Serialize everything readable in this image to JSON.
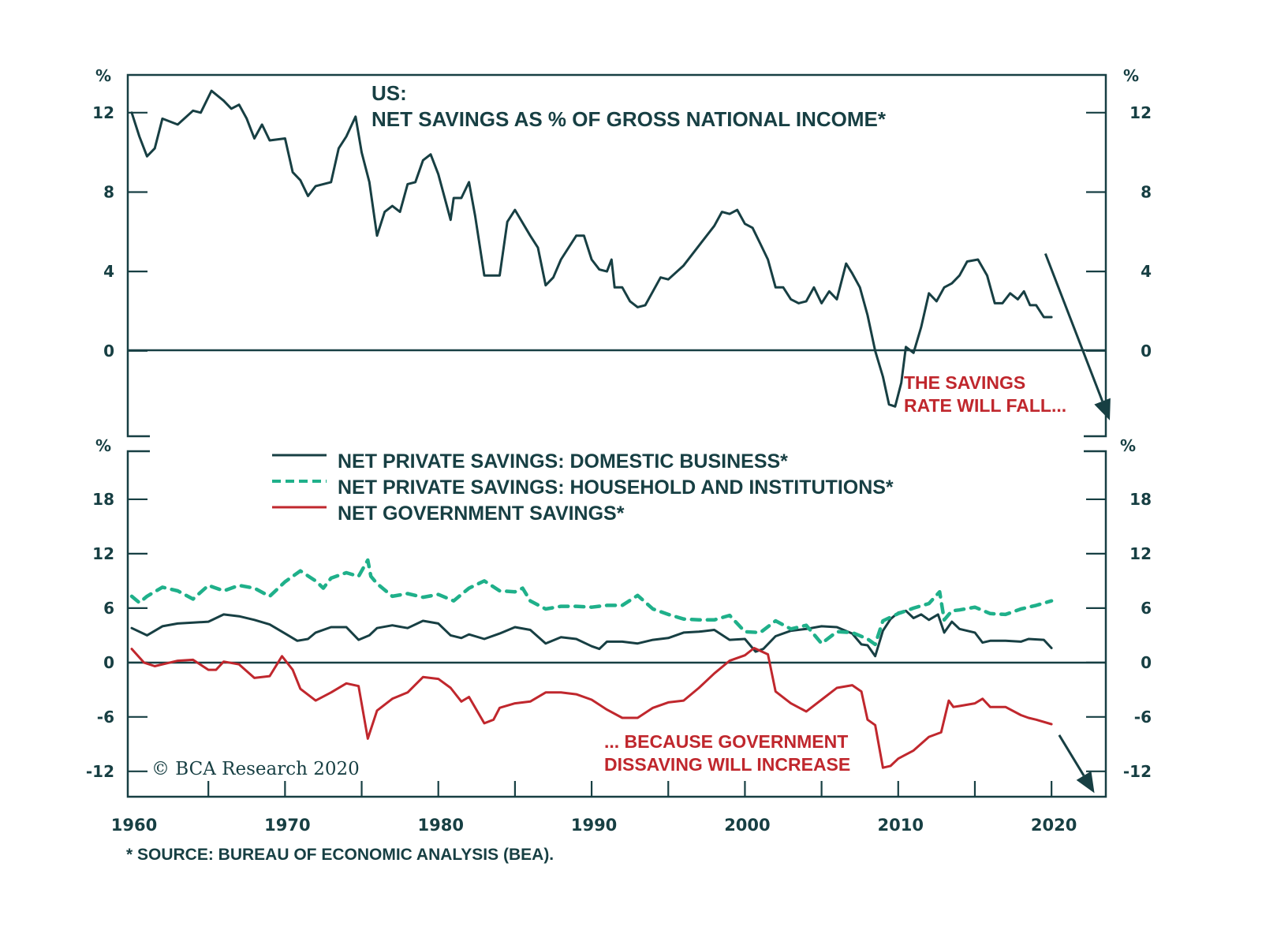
{
  "chart_data": [
    {
      "type": "line",
      "title_line1": "US:",
      "title_line2": "NET SAVINGS AS % OF GROSS NATIONAL INCOME*",
      "ylabel": "%",
      "ylim": [
        -4.3,
        13.9
      ],
      "yticks": [
        0,
        4,
        8,
        12
      ],
      "ytick_labels": [
        "0",
        "4",
        "8",
        "12"
      ],
      "grid": false,
      "zero_line": true,
      "annotation": {
        "line1": "THE SAVINGS",
        "line2": "RATE WILL FALL...",
        "color": "#c0272d"
      },
      "arrow": {
        "from": [
          2019.6,
          4.9
        ],
        "to": [
          2023.8,
          -3.5
        ]
      },
      "series": [
        {
          "name": "Net savings as % of GNI",
          "color": "#173f43",
          "style": "solid",
          "x": [
            1960,
            1960.5,
            1961,
            1961.5,
            1962,
            1963,
            1964,
            1964.5,
            1965.2,
            1966,
            1966.5,
            1967,
            1967.5,
            1968,
            1968.5,
            1969,
            1970,
            1970.5,
            1971,
            1971.5,
            1972,
            1973,
            1973.5,
            1974,
            1974.6,
            1975,
            1975.5,
            1976,
            1976.5,
            1977,
            1977.5,
            1978,
            1978.5,
            1979,
            1979.5,
            1980,
            1980.8,
            1981,
            1981.5,
            1982,
            1982.4,
            1983,
            1983.5,
            1984,
            1984.5,
            1985,
            1986,
            1986.5,
            1987,
            1987.5,
            1988,
            1989,
            1989.5,
            1990,
            1990.5,
            1991,
            1991.3,
            1991.5,
            1992,
            1992.5,
            1993,
            1993.5,
            1994,
            1994.5,
            1995,
            1996,
            1997,
            1998,
            1998.5,
            1999,
            1999.5,
            2000,
            2000.5,
            2001,
            2001.5,
            2002,
            2002.5,
            2003,
            2003.5,
            2004,
            2004.5,
            2005,
            2005.5,
            2006,
            2006.6,
            2007,
            2007.5,
            2008,
            2008.5,
            2009,
            2009.4,
            2009.8,
            2010.2,
            2010.5,
            2011,
            2011.5,
            2012,
            2012.5,
            2013,
            2013.5,
            2014,
            2014.5,
            2015.2,
            2015.8,
            2016.3,
            2016.8,
            2017.3,
            2017.8,
            2018.2,
            2018.6,
            2019,
            2019.5,
            2020
          ],
          "values": [
            12.0,
            10.8,
            9.8,
            10.2,
            11.7,
            11.4,
            12.1,
            12.0,
            13.1,
            12.6,
            12.2,
            12.4,
            11.7,
            10.7,
            11.4,
            10.6,
            10.7,
            9.0,
            8.6,
            7.8,
            8.3,
            8.5,
            10.2,
            10.8,
            11.8,
            10.0,
            8.5,
            5.8,
            7.0,
            7.3,
            7.0,
            8.4,
            8.5,
            9.6,
            9.9,
            8.9,
            6.6,
            7.7,
            7.7,
            8.5,
            6.8,
            3.8,
            3.8,
            3.8,
            6.5,
            7.1,
            5.8,
            5.2,
            3.3,
            3.7,
            4.6,
            5.8,
            5.8,
            4.6,
            4.1,
            4.0,
            4.6,
            3.2,
            3.2,
            2.5,
            2.2,
            2.3,
            3.0,
            3.7,
            3.6,
            4.3,
            5.3,
            6.3,
            7.0,
            6.9,
            7.1,
            6.4,
            6.2,
            5.4,
            4.6,
            3.2,
            3.2,
            2.6,
            2.4,
            2.5,
            3.2,
            2.4,
            3.0,
            2.6,
            4.4,
            3.9,
            3.2,
            1.8,
            0.0,
            -1.3,
            -2.7,
            -2.8,
            -1.6,
            0.2,
            -0.1,
            1.2,
            2.9,
            2.5,
            3.2,
            3.4,
            3.8,
            4.5,
            4.6,
            3.8,
            2.4,
            2.4,
            2.9,
            2.6,
            3.0,
            2.3,
            2.3,
            1.7,
            1.7
          ]
        }
      ]
    },
    {
      "type": "line",
      "ylabel": "%",
      "ylim": [
        -14.8,
        23.3
      ],
      "yticks": [
        -12,
        -6,
        0,
        6,
        12,
        18
      ],
      "ytick_labels": [
        "-12",
        "-6",
        "0",
        "6",
        "12",
        "18"
      ],
      "grid": false,
      "zero_line": true,
      "legend_position": "top-center",
      "annotation": {
        "line1": "... BECAUSE GOVERNMENT",
        "line2": "DISSAVING WILL INCREASE",
        "color": "#c0272d"
      },
      "arrow": {
        "from": [
          2020.5,
          -8.0
        ],
        "to": [
          2022.8,
          -14.4
        ]
      },
      "series": [
        {
          "name": "NET PRIVATE SAVINGS: DOMESTIC BUSINESS*",
          "color": "#173f43",
          "style": "solid",
          "x": [
            1960,
            1961,
            1962,
            1963,
            1964,
            1965,
            1966,
            1967,
            1968,
            1969,
            1970,
            1970.8,
            1971.5,
            1972,
            1973,
            1974,
            1974.8,
            1975.5,
            1976,
            1977,
            1978,
            1979,
            1980,
            1980.8,
            1981.5,
            1982,
            1983,
            1984,
            1985,
            1986,
            1987,
            1988,
            1989,
            1990,
            1990.5,
            1991,
            1992,
            1993,
            1994,
            1995,
            1996,
            1997,
            1998,
            1999,
            2000,
            2000.7,
            2001.2,
            2002,
            2003,
            2004,
            2005,
            2006,
            2007,
            2007.6,
            2008,
            2008.5,
            2009,
            2009.5,
            2010,
            2010.5,
            2011,
            2011.5,
            2012,
            2012.6,
            2013,
            2013.5,
            2014,
            2015,
            2015.5,
            2016,
            2017,
            2018,
            2018.5,
            2019.5,
            2020
          ],
          "values": [
            3.8,
            3.0,
            4.0,
            4.3,
            4.4,
            4.5,
            5.3,
            5.1,
            4.7,
            4.2,
            3.2,
            2.4,
            2.6,
            3.3,
            3.9,
            3.9,
            2.5,
            3.0,
            3.8,
            4.1,
            3.8,
            4.6,
            4.3,
            3.0,
            2.7,
            3.1,
            2.6,
            3.2,
            3.9,
            3.6,
            2.1,
            2.8,
            2.6,
            1.8,
            1.5,
            2.3,
            2.3,
            2.1,
            2.5,
            2.7,
            3.3,
            3.4,
            3.6,
            2.5,
            2.6,
            1.2,
            1.5,
            2.9,
            3.5,
            3.7,
            4.0,
            3.9,
            3.2,
            2.0,
            1.9,
            0.7,
            3.5,
            4.8,
            5.5,
            5.7,
            4.9,
            5.3,
            4.7,
            5.3,
            3.3,
            4.5,
            3.7,
            3.3,
            2.2,
            2.4,
            2.4,
            2.3,
            2.6,
            2.5,
            1.6
          ]
        },
        {
          "name": "NET PRIVATE SAVINGS: HOUSEHOLD AND INSTITUTIONS*",
          "color": "#1fb08a",
          "style": "dashed",
          "x": [
            1960,
            1960.5,
            1961,
            1962,
            1963,
            1964,
            1965,
            1966,
            1967,
            1968,
            1969,
            1970,
            1971,
            1972,
            1972.5,
            1973,
            1974,
            1974.8,
            1975.4,
            1975.6,
            1976,
            1977,
            1978,
            1979,
            1980,
            1981,
            1982,
            1983,
            1984,
            1985,
            1985.5,
            1986,
            1987,
            1988,
            1989,
            1990,
            1991,
            1992,
            1993,
            1994,
            1995,
            1996,
            1997,
            1998,
            1999,
            2000,
            2001,
            2002,
            2003,
            2004,
            2005,
            2006,
            2007,
            2008,
            2008.5,
            2009,
            2010,
            2011,
            2012,
            2012.7,
            2013,
            2013.5,
            2014,
            2015,
            2016,
            2017,
            2018,
            2019,
            2020
          ],
          "values": [
            7.3,
            6.6,
            7.3,
            8.3,
            7.9,
            7.0,
            8.5,
            7.9,
            8.5,
            8.2,
            7.3,
            8.9,
            10.1,
            9.0,
            8.2,
            9.3,
            9.9,
            9.5,
            11.3,
            9.5,
            8.7,
            7.3,
            7.6,
            7.2,
            7.5,
            6.8,
            8.2,
            9.0,
            7.9,
            7.8,
            8.2,
            6.8,
            5.9,
            6.2,
            6.2,
            6.1,
            6.3,
            6.3,
            7.4,
            5.9,
            5.3,
            4.8,
            4.7,
            4.7,
            5.2,
            3.4,
            3.3,
            4.6,
            3.7,
            4.1,
            2.1,
            3.4,
            3.3,
            2.6,
            2.0,
            4.6,
            5.4,
            6.0,
            6.5,
            7.8,
            4.7,
            5.7,
            5.8,
            6.1,
            5.4,
            5.3,
            5.9,
            6.3,
            6.8
          ]
        },
        {
          "name": "NET GOVERNMENT SAVINGS*",
          "color": "#c0272d",
          "style": "solid",
          "x": [
            1960,
            1960.8,
            1961.5,
            1962,
            1963,
            1964,
            1965,
            1965.5,
            1966,
            1967,
            1968,
            1969,
            1969.8,
            1970.5,
            1971,
            1972,
            1973,
            1974,
            1974.8,
            1975.4,
            1976,
            1977,
            1978,
            1979,
            1980,
            1980.8,
            1981.5,
            1982,
            1983,
            1983.6,
            1984,
            1985,
            1986,
            1987,
            1988,
            1989,
            1990,
            1991,
            1992,
            1993,
            1994,
            1995,
            1996,
            1997,
            1998,
            1999,
            2000,
            2000.6,
            2001.5,
            2002,
            2003,
            2004,
            2005,
            2006,
            2007,
            2007.6,
            2008,
            2008.5,
            2009,
            2009.5,
            2010,
            2011,
            2012,
            2012.8,
            2013.3,
            2013.6,
            2014,
            2015,
            2015.5,
            2016,
            2017,
            2018,
            2018.5,
            2019,
            2020
          ],
          "values": [
            1.5,
            0.0,
            -0.4,
            -0.2,
            0.2,
            0.3,
            -0.8,
            -0.8,
            0.1,
            -0.2,
            -1.7,
            -1.5,
            0.7,
            -0.8,
            -2.9,
            -4.2,
            -3.3,
            -2.3,
            -2.6,
            -8.4,
            -5.3,
            -4.0,
            -3.3,
            -1.6,
            -1.8,
            -2.8,
            -4.3,
            -3.8,
            -6.7,
            -6.3,
            -5.0,
            -4.5,
            -4.3,
            -3.3,
            -3.3,
            -3.5,
            -4.1,
            -5.2,
            -6.1,
            -6.1,
            -5.0,
            -4.4,
            -4.2,
            -2.8,
            -1.2,
            0.2,
            0.8,
            1.6,
            0.9,
            -3.2,
            -4.5,
            -5.4,
            -4.1,
            -2.8,
            -2.5,
            -3.2,
            -6.3,
            -6.9,
            -11.6,
            -11.4,
            -10.6,
            -9.7,
            -8.2,
            -7.7,
            -4.2,
            -4.9,
            -4.8,
            -4.5,
            -4.0,
            -4.9,
            -4.9,
            -5.8,
            -6.1,
            -6.3,
            -6.8
          ]
        }
      ]
    }
  ],
  "xaxis": {
    "xlim": [
      1960,
      2023.8
    ],
    "major_ticks": [
      1960,
      1970,
      1980,
      1990,
      2000,
      2010,
      2020
    ],
    "tick_labels": [
      "1960",
      "1970",
      "1980",
      "1990",
      "2000",
      "2010",
      "2020"
    ],
    "minor_ticks": [
      1965,
      1975,
      1985,
      1995,
      2005,
      2015
    ]
  },
  "labels": {
    "percent": "%",
    "copyright": "© BCA Research 2020",
    "source": "* SOURCE: BUREAU OF ECONOMIC ANALYSIS (BEA)."
  }
}
